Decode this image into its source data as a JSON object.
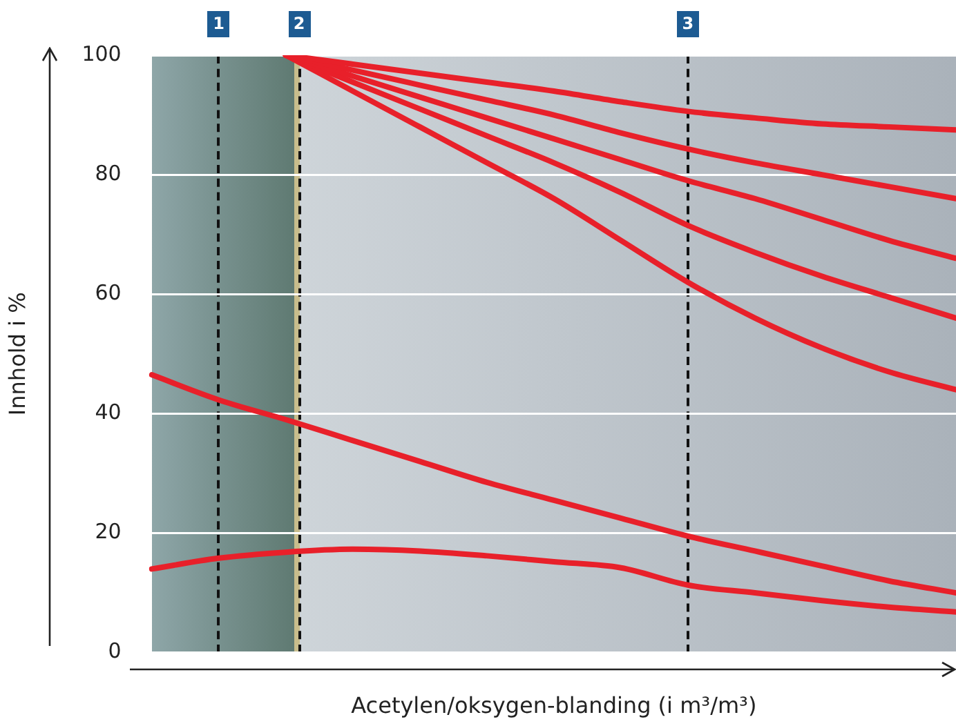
{
  "chart_data": {
    "type": "line",
    "xlabel": "Acetylen/oksygen-blanding (i m³/m³)",
    "ylabel": "Innhold i %",
    "categories": [
      null,
      null,
      null,
      null,
      null,
      null,
      null,
      null,
      null,
      null,
      null,
      null,
      null
    ],
    "series": [
      {
        "color": "#e8202a",
        "values": [
          null,
          null,
          100,
          98.5,
          97,
          95.5,
          94,
          92.2,
          90.6,
          89.5,
          88.5,
          88,
          87.5
        ]
      },
      {
        "color": "#e8202a",
        "values": [
          null,
          null,
          100,
          97.5,
          95,
          92.5,
          90,
          87,
          84.3,
          82,
          80,
          78,
          76
        ]
      },
      {
        "color": "#e8202a",
        "values": [
          null,
          null,
          100,
          96.5,
          93,
          89.5,
          86,
          82.5,
          79,
          76,
          72.5,
          69,
          66
        ]
      },
      {
        "color": "#e8202a",
        "values": [
          null,
          null,
          100,
          95.5,
          91,
          86.5,
          82,
          77,
          71.5,
          67,
          63,
          59.5,
          56
        ]
      },
      {
        "color": "#e8202a",
        "values": [
          null,
          null,
          100,
          94,
          88,
          82,
          76,
          69,
          62,
          56,
          51,
          47,
          44
        ]
      },
      {
        "color": "#e8202a",
        "values": [
          46.5,
          42.3,
          39,
          35.5,
          32,
          28.5,
          25.5,
          22.5,
          19.5,
          17,
          14.5,
          12,
          10
        ]
      },
      {
        "color": "#e8202a",
        "values": [
          14,
          15.8,
          16.8,
          17.3,
          17,
          16.2,
          15.2,
          14.2,
          11.3,
          10,
          8.7,
          7.6,
          6.8
        ]
      }
    ],
    "ylim": [
      0,
      100
    ],
    "yticks": [
      0,
      20,
      40,
      60,
      80,
      100
    ],
    "grid": "y",
    "legend": false,
    "marker": "none",
    "line_style": "solid",
    "annotations": [
      "1",
      "2",
      "3"
    ]
  }
}
